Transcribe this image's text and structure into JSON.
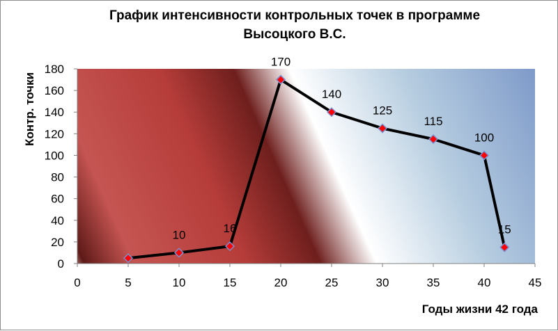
{
  "chart_data": {
    "type": "scatter",
    "title": "График интенсивности контрольных точек в программе Высоцкого В.С.",
    "title_lines": [
      "График интенсивности контрольных точек в программе",
      "Высоцкого В.С."
    ],
    "xlabel": "Годы жизни 42 года",
    "ylabel": "Контр. точки",
    "xlim": [
      0,
      45
    ],
    "ylim": [
      0,
      180
    ],
    "xticks": [
      0,
      5,
      10,
      15,
      20,
      25,
      30,
      35,
      40,
      45
    ],
    "yticks": [
      0,
      20,
      40,
      60,
      80,
      100,
      120,
      140,
      160,
      180
    ],
    "grid": false,
    "legend": "none",
    "series": [
      {
        "x": [
          5,
          10,
          15,
          20,
          25,
          30,
          35,
          40,
          42
        ],
        "y": [
          5,
          10,
          16,
          170,
          140,
          125,
          115,
          100,
          15
        ],
        "data_labels": [
          "",
          "10",
          "16",
          "170",
          "140",
          "125",
          "115",
          "100",
          "15"
        ],
        "line_color": "#000000",
        "marker_color": "#ff0000",
        "marker_edge_color": "#7a8fd0",
        "marker": "diamond"
      }
    ]
  }
}
